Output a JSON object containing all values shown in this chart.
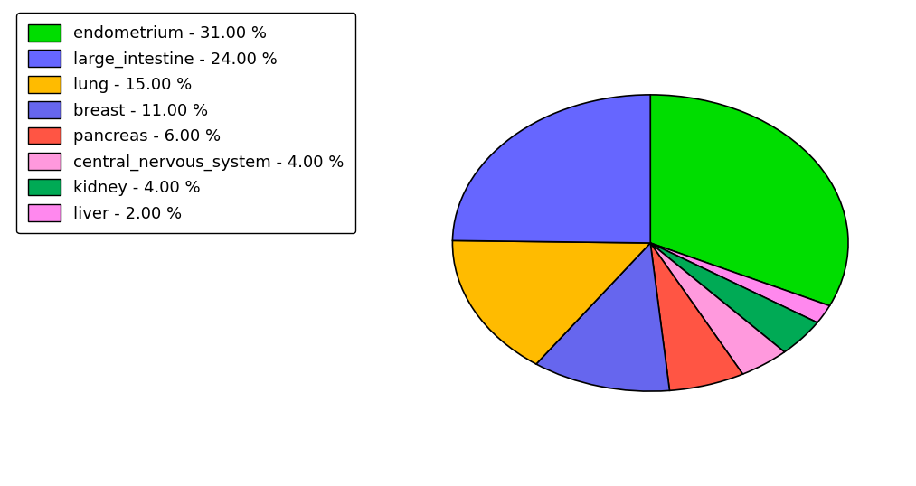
{
  "labels": [
    "endometrium",
    "liver",
    "kidney",
    "central_nervous_system",
    "pancreas",
    "breast",
    "lung",
    "large_intestine"
  ],
  "values": [
    31.0,
    2.0,
    4.0,
    4.0,
    6.0,
    11.0,
    15.0,
    24.0
  ],
  "colors": [
    "#00dd00",
    "#ff88ee",
    "#00aa55",
    "#ff99dd",
    "#ff5544",
    "#6666ee",
    "#ffbb00",
    "#6666ff"
  ],
  "legend_labels": [
    "endometrium - 31.00 %",
    "large_intestine - 24.00 %",
    "lung - 15.00 %",
    "breast - 11.00 %",
    "pancreas - 6.00 %",
    "central_nervous_system - 4.00 %",
    "kidney - 4.00 %",
    "liver - 2.00 %"
  ],
  "legend_colors": [
    "#00dd00",
    "#6666ff",
    "#ffbb00",
    "#6666ee",
    "#ff5544",
    "#ff99dd",
    "#00aa55",
    "#ff88ee"
  ],
  "background_color": "#ffffff",
  "startangle": 90,
  "aspect_ratio": 0.75
}
